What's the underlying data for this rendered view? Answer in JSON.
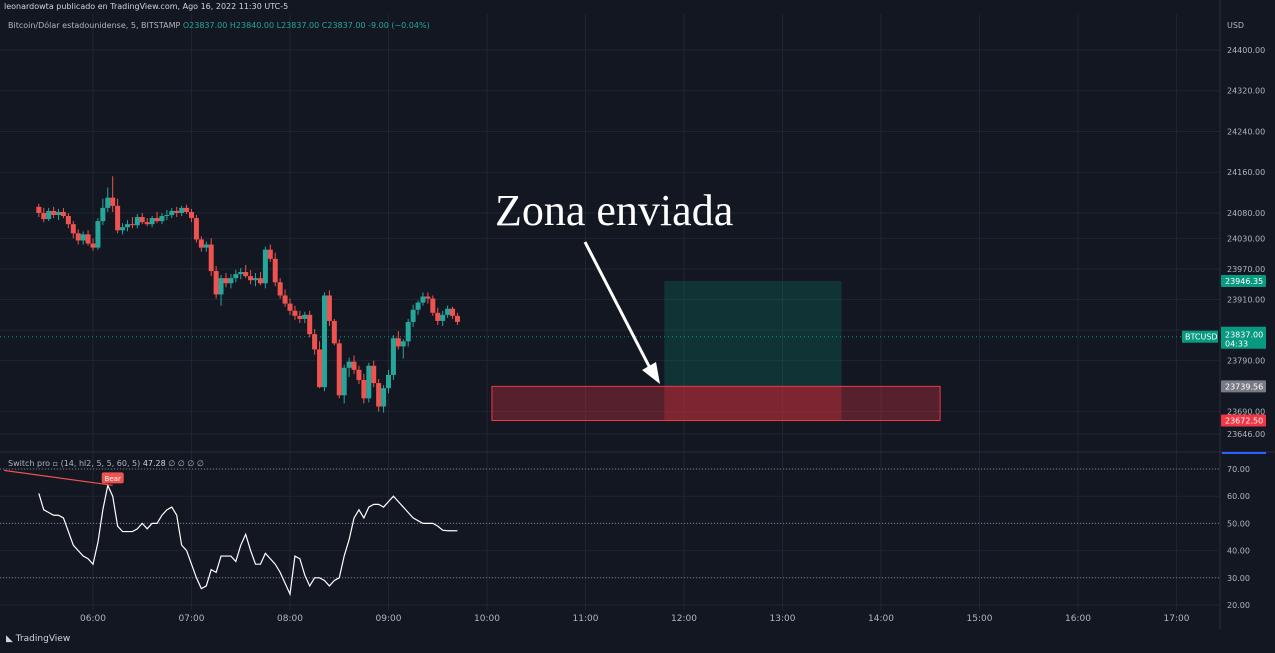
{
  "header": {
    "publisher": "leonardowta publicado en TradingView.com, Ago 16, 2022 11:30 UTC-5",
    "symbol": "Bitcoin/Dólar estadounidense, 5, BITSTAMP",
    "ohlc": {
      "o": "O23837.00",
      "h": "H23840.00",
      "l": "L23837.00",
      "c": "C23837.00",
      "chg": "-9.00 (−0.04%)"
    }
  },
  "indicator_header": {
    "name": "Switch pro ▫ (14, hl2, 5, 5, 60, 5)",
    "value": "47.28",
    "extra": "∅ ∅ ∅ ∅"
  },
  "footer": {
    "brand": "TradingView"
  },
  "annotation": {
    "text": "Zona enviada"
  },
  "colors": {
    "up": "#26a69a",
    "down": "#ef5350",
    "bg": "#131722",
    "grid": "#1f2430",
    "text": "#b2b5be"
  },
  "chart_data": [
    {
      "type": "candlestick",
      "currency": "USD",
      "ylim": [
        23620,
        24460
      ],
      "y_ticks": [
        24400,
        24320,
        24240,
        24160,
        24080,
        24030,
        23970,
        23910,
        23850,
        23790,
        23690,
        23646
      ],
      "y_tick_labels": [
        "24400.00",
        "24320.00",
        "24240.00",
        "24160.00",
        "24080.00",
        "24030.00",
        "23970.00",
        "23910.00",
        "23850.00",
        "23790.00",
        "23690.00",
        "23646.00"
      ],
      "x_ticks": [
        "06:00",
        "07:00",
        "08:00",
        "09:00",
        "10:00",
        "11:00",
        "12:00",
        "13:00",
        "14:00",
        "15:00",
        "16:00",
        "17:00"
      ],
      "x_range_hours": [
        5.4,
        17.4
      ],
      "candles": [
        [
          5.45,
          24092,
          24098,
          24072,
          24080
        ],
        [
          5.5,
          24080,
          24090,
          24062,
          24068
        ],
        [
          5.55,
          24068,
          24090,
          24064,
          24084
        ],
        [
          5.6,
          24084,
          24092,
          24070,
          24076
        ],
        [
          5.65,
          24076,
          24088,
          24066,
          24082
        ],
        [
          5.7,
          24082,
          24090,
          24070,
          24074
        ],
        [
          5.75,
          24074,
          24080,
          24050,
          24058
        ],
        [
          5.8,
          24058,
          24064,
          24030,
          24040
        ],
        [
          5.85,
          24040,
          24048,
          24018,
          24026
        ],
        [
          5.9,
          24026,
          24044,
          24018,
          24038
        ],
        [
          5.95,
          24038,
          24046,
          24016,
          24020
        ],
        [
          6.0,
          24020,
          24030,
          24006,
          24012
        ],
        [
          6.05,
          24012,
          24070,
          24008,
          24064
        ],
        [
          6.1,
          24064,
          24108,
          24056,
          24090
        ],
        [
          6.15,
          24090,
          24130,
          24082,
          24110
        ],
        [
          6.2,
          24110,
          24152,
          24082,
          24094
        ],
        [
          6.25,
          24094,
          24108,
          24040,
          24046
        ],
        [
          6.3,
          24046,
          24060,
          24038,
          24052
        ],
        [
          6.35,
          24052,
          24066,
          24044,
          24058
        ],
        [
          6.4,
          24058,
          24072,
          24050,
          24056
        ],
        [
          6.45,
          24056,
          24078,
          24050,
          24072
        ],
        [
          6.5,
          24072,
          24080,
          24058,
          24062
        ],
        [
          6.55,
          24062,
          24070,
          24054,
          24058
        ],
        [
          6.6,
          24058,
          24074,
          24052,
          24070
        ],
        [
          6.65,
          24070,
          24082,
          24060,
          24064
        ],
        [
          6.7,
          24064,
          24080,
          24058,
          24074
        ],
        [
          6.75,
          24074,
          24086,
          24066,
          24076
        ],
        [
          6.8,
          24076,
          24090,
          24070,
          24084
        ],
        [
          6.85,
          24084,
          24092,
          24072,
          24080
        ],
        [
          6.9,
          24080,
          24094,
          24074,
          24090
        ],
        [
          6.95,
          24090,
          24096,
          24078,
          24082
        ],
        [
          7.0,
          24082,
          24088,
          24062,
          24070
        ],
        [
          7.05,
          24070,
          24076,
          24022,
          24028
        ],
        [
          7.1,
          24028,
          24034,
          24004,
          24012
        ],
        [
          7.15,
          24012,
          24024,
          24004,
          24018
        ],
        [
          7.2,
          24018,
          24030,
          23956,
          23966
        ],
        [
          7.25,
          23966,
          23976,
          23912,
          23920
        ],
        [
          7.3,
          23920,
          23958,
          23898,
          23952
        ],
        [
          7.35,
          23952,
          23962,
          23934,
          23942
        ],
        [
          7.4,
          23942,
          23960,
          23932,
          23952
        ],
        [
          7.45,
          23952,
          23968,
          23944,
          23960
        ],
        [
          7.5,
          23960,
          23972,
          23950,
          23964
        ],
        [
          7.55,
          23964,
          23978,
          23952,
          23956
        ],
        [
          7.6,
          23956,
          23968,
          23940,
          23948
        ],
        [
          7.65,
          23948,
          23962,
          23936,
          23952
        ],
        [
          7.7,
          23952,
          23964,
          23938,
          23942
        ],
        [
          7.75,
          23942,
          24014,
          23932,
          24008
        ],
        [
          7.8,
          24008,
          24018,
          23984,
          23990
        ],
        [
          7.85,
          23990,
          24002,
          23936,
          23944
        ],
        [
          7.9,
          23944,
          23952,
          23912,
          23918
        ],
        [
          7.95,
          23918,
          23930,
          23896,
          23902
        ],
        [
          8.0,
          23902,
          23912,
          23880,
          23888
        ],
        [
          8.05,
          23888,
          23898,
          23870,
          23878
        ],
        [
          8.1,
          23878,
          23888,
          23864,
          23872
        ],
        [
          8.15,
          23872,
          23886,
          23864,
          23880
        ],
        [
          8.2,
          23880,
          23888,
          23836,
          23842
        ],
        [
          8.25,
          23842,
          23852,
          23802,
          23812
        ],
        [
          8.3,
          23812,
          23828,
          23736,
          23738
        ],
        [
          8.35,
          23738,
          23924,
          23730,
          23918
        ],
        [
          8.4,
          23918,
          23928,
          23858,
          23868
        ],
        [
          8.45,
          23868,
          23872,
          23820,
          23824
        ],
        [
          8.5,
          23824,
          23832,
          23716,
          23722
        ],
        [
          8.55,
          23722,
          23782,
          23706,
          23776
        ],
        [
          8.6,
          23776,
          23796,
          23758,
          23788
        ],
        [
          8.65,
          23788,
          23800,
          23764,
          23772
        ],
        [
          8.7,
          23772,
          23780,
          23744,
          23752
        ],
        [
          8.75,
          23752,
          23764,
          23706,
          23716
        ],
        [
          8.8,
          23716,
          23786,
          23708,
          23780
        ],
        [
          8.85,
          23780,
          23790,
          23738,
          23746
        ],
        [
          8.9,
          23746,
          23754,
          23690,
          23700
        ],
        [
          8.95,
          23700,
          23742,
          23688,
          23736
        ],
        [
          9.0,
          23736,
          23772,
          23726,
          23762
        ],
        [
          9.05,
          23762,
          23840,
          23752,
          23834
        ],
        [
          9.1,
          23834,
          23848,
          23812,
          23818
        ],
        [
          9.15,
          23818,
          23832,
          23794,
          23828
        ],
        [
          9.2,
          23828,
          23872,
          23818,
          23866
        ],
        [
          9.25,
          23866,
          23900,
          23856,
          23890
        ],
        [
          9.3,
          23890,
          23908,
          23880,
          23904
        ],
        [
          9.35,
          23904,
          23924,
          23898,
          23916
        ],
        [
          9.4,
          23916,
          23924,
          23902,
          23912
        ],
        [
          9.45,
          23912,
          23918,
          23878,
          23884
        ],
        [
          9.5,
          23884,
          23894,
          23860,
          23868
        ],
        [
          9.55,
          23868,
          23888,
          23858,
          23880
        ],
        [
          9.6,
          23880,
          23898,
          23874,
          23892
        ],
        [
          9.65,
          23892,
          23896,
          23872,
          23878
        ],
        [
          9.7,
          23878,
          23884,
          23860,
          23866
        ]
      ]
    },
    {
      "type": "line",
      "title": "Switch pro",
      "ylim": [
        15,
        75
      ],
      "y_ticks": [
        70,
        60,
        50,
        40,
        30,
        20
      ],
      "y_tick_labels": [
        "70.00",
        "60.00",
        "50.00",
        "40.00",
        "30.00",
        "20.00"
      ],
      "reference_levels": [
        70,
        50,
        30
      ],
      "x": [
        5.45,
        5.5,
        5.55,
        5.6,
        5.65,
        5.7,
        5.75,
        5.8,
        5.85,
        5.9,
        5.95,
        6.0,
        6.05,
        6.1,
        6.15,
        6.2,
        6.25,
        6.3,
        6.35,
        6.4,
        6.45,
        6.5,
        6.55,
        6.6,
        6.65,
        6.7,
        6.75,
        6.8,
        6.85,
        6.9,
        6.95,
        7.0,
        7.05,
        7.1,
        7.15,
        7.2,
        7.25,
        7.3,
        7.35,
        7.4,
        7.45,
        7.5,
        7.55,
        7.6,
        7.65,
        7.7,
        7.75,
        7.8,
        7.85,
        7.9,
        7.95,
        8.0,
        8.05,
        8.1,
        8.15,
        8.2,
        8.25,
        8.3,
        8.35,
        8.4,
        8.45,
        8.5,
        8.55,
        8.6,
        8.65,
        8.7,
        8.75,
        8.8,
        8.85,
        8.9,
        8.95,
        9.0,
        9.05,
        9.1,
        9.15,
        9.2,
        9.25,
        9.3,
        9.35,
        9.4,
        9.45,
        9.5,
        9.55,
        9.6,
        9.65,
        9.7
      ],
      "values": [
        61,
        55,
        54,
        53,
        53,
        52,
        47,
        42,
        40,
        38,
        37,
        35,
        43,
        55,
        64,
        60,
        49,
        47,
        47,
        47,
        48,
        50,
        48,
        50,
        50,
        53,
        55,
        56,
        53,
        42,
        40,
        35,
        30,
        26,
        27,
        33,
        32,
        38,
        38,
        38,
        36,
        42,
        46,
        40,
        35,
        35,
        39,
        37,
        35,
        32,
        28,
        24,
        38,
        37,
        31,
        27,
        30,
        30,
        29,
        27,
        29,
        30,
        38,
        44,
        52,
        55,
        52,
        56,
        57,
        57,
        56,
        58,
        60,
        58,
        56,
        54,
        52,
        51,
        50,
        50,
        50,
        49,
        47.5,
        47.3,
        47.3,
        47.28
      ],
      "annotation": {
        "label": "Bear"
      }
    }
  ],
  "price_labels": {
    "target": {
      "text": "23946.35",
      "price": 23946.35,
      "color": "#089981"
    },
    "current": {
      "text": "23837.00",
      "price": 23837,
      "sub": "04:33",
      "symbol": "BTCUSD",
      "color": "#089981"
    },
    "entry": {
      "text": "23739.56",
      "price": 23739.56,
      "color": "#787b86"
    },
    "stop": {
      "text": "23672.50",
      "price": 23672.5,
      "color": "#f23645"
    }
  },
  "zones": {
    "profit": {
      "from_time": 11.8,
      "to_time": 13.6,
      "from_price": 23739.56,
      "to_price": 23946.35
    },
    "loss": {
      "from_time": 10.05,
      "to_time": 14.6,
      "from_price": 23672.5,
      "to_price": 23739.56
    }
  }
}
